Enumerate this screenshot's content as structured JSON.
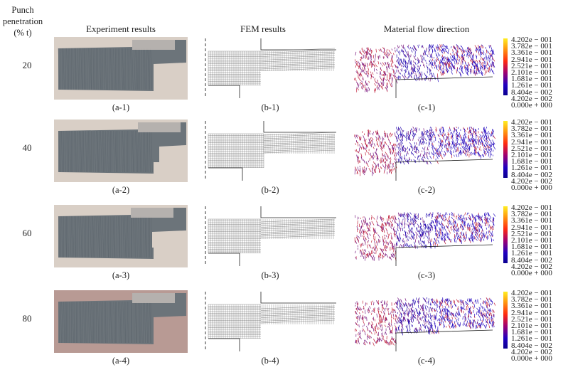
{
  "header": {
    "penetration_label_line1": "Punch",
    "penetration_label_line2": "penetration",
    "penetration_label_line3": "(% t)",
    "col_experiment": "Experiment results",
    "col_fem": "FEM results",
    "col_flow": "Material flow direction"
  },
  "rows": [
    {
      "penetration": "20",
      "cap_a": "(a-1)",
      "cap_b": "(b-1)",
      "cap_c": "(c-1)"
    },
    {
      "penetration": "40",
      "cap_a": "(a-2)",
      "cap_b": "(b-2)",
      "cap_c": "(c-2)"
    },
    {
      "penetration": "60",
      "cap_a": "(a-3)",
      "cap_b": "(b-3)",
      "cap_c": "(c-3)"
    },
    {
      "penetration": "80",
      "cap_a": "(a-4)",
      "cap_b": "(b-4)",
      "cap_c": "(c-4)"
    }
  ],
  "legend_values": [
    "4.202e − 001",
    "3.782e − 001",
    "3.361e − 001",
    "2.941e − 001",
    "2.521e − 001",
    "2.101e − 001",
    "1.681e − 001",
    "1.261e − 001",
    "8.404e − 002",
    "4.202e − 002",
    "0.000e + 000"
  ],
  "colors": {
    "high": "#ffee22",
    "mid": "#ff2a10",
    "low": "#0a0090",
    "metal": "#6c747a"
  }
}
